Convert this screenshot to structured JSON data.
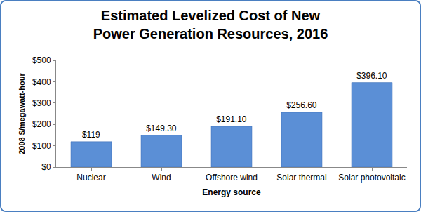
{
  "chart_data": {
    "type": "bar",
    "title": "Estimated Levelized Cost of New Power Generation Resources, 2016",
    "x_label": "Energy source",
    "y_label": "2008 $/megawatt-hour",
    "categories": [
      "Nuclear",
      "Wind",
      "Offshore wind",
      "Solar thermal",
      "Solar photovoltaic"
    ],
    "values": [
      119,
      149.3,
      191.1,
      256.6,
      396.1
    ],
    "value_labels": [
      "$119",
      "$149.30",
      "$191.10",
      "$256.60",
      "$396.10"
    ],
    "data_labels": true,
    "color": "#5b8fd6",
    "ylim": [
      0,
      500
    ],
    "yticks": [
      {
        "value": 0,
        "label": "$0"
      },
      {
        "value": 100,
        "label": "$100"
      },
      {
        "value": 200,
        "label": "$200"
      },
      {
        "value": 300,
        "label": "$300"
      },
      {
        "value": 400,
        "label": "$400"
      },
      {
        "value": 500,
        "label": "$500"
      }
    ],
    "grid": false
  }
}
